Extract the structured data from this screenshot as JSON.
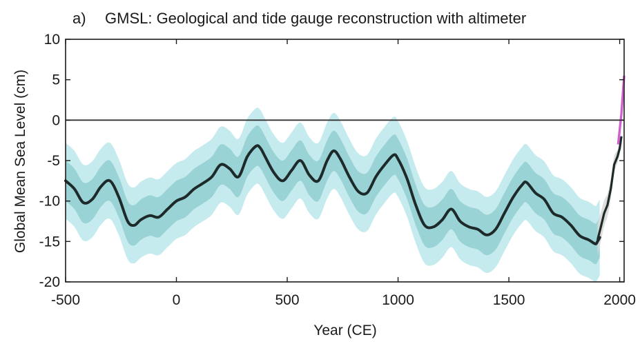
{
  "chart_data": {
    "type": "line",
    "panel_label": "a)",
    "title": "GMSL: Geological and tide gauge reconstruction with altimeter",
    "xlabel": "Year (CE)",
    "ylabel": "Global Mean Sea Level (cm)",
    "xlim": [
      -500,
      2020
    ],
    "ylim": [
      -20,
      10
    ],
    "xticks": [
      -500,
      0,
      500,
      1000,
      1500,
      2000
    ],
    "yticks": [
      -20,
      -15,
      -10,
      -5,
      0,
      5,
      10
    ],
    "xtick_labels": [
      "-500",
      "0",
      "500",
      "1000",
      "1500",
      "2000"
    ],
    "ytick_labels": [
      "-20",
      "-15",
      "-10",
      "-5",
      "0",
      "5",
      "10"
    ],
    "reference_line": 0,
    "grid": false,
    "colors": {
      "outer_band": "#c6ebee",
      "inner_band": "#99d3d5",
      "central": "#1e2a2a",
      "tide_gauge_band": "#d9d9d9",
      "altimeter": "#d05fcf",
      "zero_line": "#333333"
    },
    "x": [
      -500,
      -460,
      -420,
      -380,
      -340,
      -300,
      -260,
      -220,
      -190,
      -160,
      -120,
      -80,
      -40,
      0,
      40,
      80,
      120,
      160,
      200,
      240,
      280,
      320,
      360,
      380,
      400,
      440,
      480,
      520,
      560,
      600,
      640,
      680,
      710,
      740,
      780,
      820,
      860,
      900,
      940,
      980,
      1000,
      1040,
      1080,
      1120,
      1160,
      1200,
      1240,
      1280,
      1320,
      1360,
      1400,
      1440,
      1480,
      1520,
      1560,
      1580,
      1620,
      1660,
      1700,
      1740,
      1780,
      1820,
      1860,
      1890,
      1900,
      1910
    ],
    "series": [
      {
        "name": "",
        "role": "central estimate",
        "values": [
          -7.5,
          -8.5,
          -10.2,
          -9.8,
          -8.2,
          -7.5,
          -9.5,
          -12.5,
          -13.0,
          -12.3,
          -11.8,
          -12.0,
          -11.0,
          -10.0,
          -9.5,
          -8.5,
          -7.8,
          -7.0,
          -5.5,
          -6.0,
          -7.0,
          -4.5,
          -3.2,
          -3.5,
          -4.5,
          -6.5,
          -7.5,
          -6.2,
          -5.0,
          -6.8,
          -7.5,
          -5.0,
          -3.8,
          -4.8,
          -7.0,
          -8.8,
          -9.0,
          -7.0,
          -5.5,
          -4.3,
          -4.8,
          -7.2,
          -10.5,
          -13.0,
          -13.2,
          -12.3,
          -11.0,
          -12.5,
          -13.2,
          -13.5,
          -14.2,
          -13.5,
          -11.5,
          -9.5,
          -8.0,
          -7.7,
          -9.0,
          -9.8,
          -11.5,
          -12.0,
          -13.0,
          -14.3,
          -14.8,
          -15.3,
          -15.0,
          -14.5
        ],
        "band_inner": 2.5,
        "band_outer": 4.7
      },
      {
        "name": "",
        "role": "tide gauge reconstruction",
        "x": [
          1900,
          1915,
          1930,
          1945,
          1960,
          1975,
          1990,
          2000,
          2008
        ],
        "values": [
          -14.8,
          -13.2,
          -11.5,
          -10.5,
          -8.5,
          -5.5,
          -4.5,
          -3.5,
          -2.0
        ],
        "band": [
          2.0,
          1.8,
          1.6,
          1.4,
          1.2,
          1.0,
          0.8,
          0.7,
          0.6
        ]
      },
      {
        "name": "",
        "role": "altimeter",
        "x": [
          1993,
          2000,
          2008,
          2015,
          2020
        ],
        "values": [
          -3.0,
          -1.2,
          0.8,
          3.5,
          5.5
        ]
      }
    ]
  }
}
